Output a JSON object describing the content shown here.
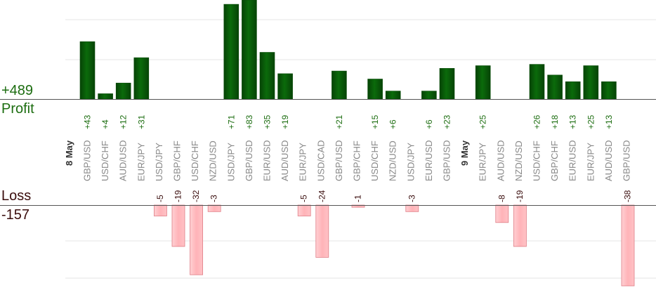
{
  "summary": {
    "profit_total": "+489",
    "profit_label": "Profit",
    "loss_label": "Loss",
    "loss_total": "-157"
  },
  "colors": {
    "profit_bar": "#0b6b0b",
    "profit_bar_dark": "#064306",
    "loss_bar": "#ffb3b8",
    "loss_border": "#e07d86",
    "profit_text": "#1c6d10",
    "loss_text": "#3a0d0d",
    "axis": "#555555",
    "grid": "#e6e6e6"
  },
  "chart_data": {
    "type": "bar",
    "profit_ylim": [
      0,
      90
    ],
    "loss_ylim": [
      0,
      -36
    ],
    "date_markers": [
      {
        "label": "8 May",
        "before_index": 0
      },
      {
        "label": "9 May",
        "before_index": 21
      }
    ],
    "categories": [
      "GBP/USD",
      "USD/CHF",
      "AUD/USD",
      "EUR/JPY",
      "USD/JPY",
      "GBP/CHF",
      "USD/CHF",
      "NZD/USD",
      "USD/JPY",
      "GBP/USD",
      "EUR/USD",
      "AUD/USD",
      "EUR/JPY",
      "USD/CAD",
      "GBP/USD",
      "GBP/CHF",
      "USD/CHF",
      "NZD/USD",
      "USD/JPY",
      "EUR/USD",
      "GBP/USD",
      "EUR/JPY",
      "AUD/USD",
      "NZD/USD",
      "USD/CHF",
      "GBP/CHF",
      "EUR/USD",
      "EUR/JPY",
      "AUD/USD",
      "GBP/USD"
    ],
    "series": [
      {
        "name": "Profit",
        "values": [
          43,
          4,
          12,
          31,
          null,
          null,
          null,
          null,
          71,
          83,
          35,
          19,
          null,
          null,
          21,
          null,
          15,
          6,
          null,
          6,
          23,
          25,
          null,
          null,
          26,
          18,
          13,
          25,
          13,
          null
        ]
      },
      {
        "name": "Loss",
        "values": [
          null,
          null,
          null,
          null,
          -5,
          -19,
          -32,
          -3,
          null,
          null,
          null,
          null,
          -5,
          -24,
          null,
          -1,
          null,
          null,
          -3,
          null,
          null,
          null,
          -8,
          -19,
          null,
          null,
          null,
          null,
          null,
          -38
        ]
      }
    ]
  }
}
